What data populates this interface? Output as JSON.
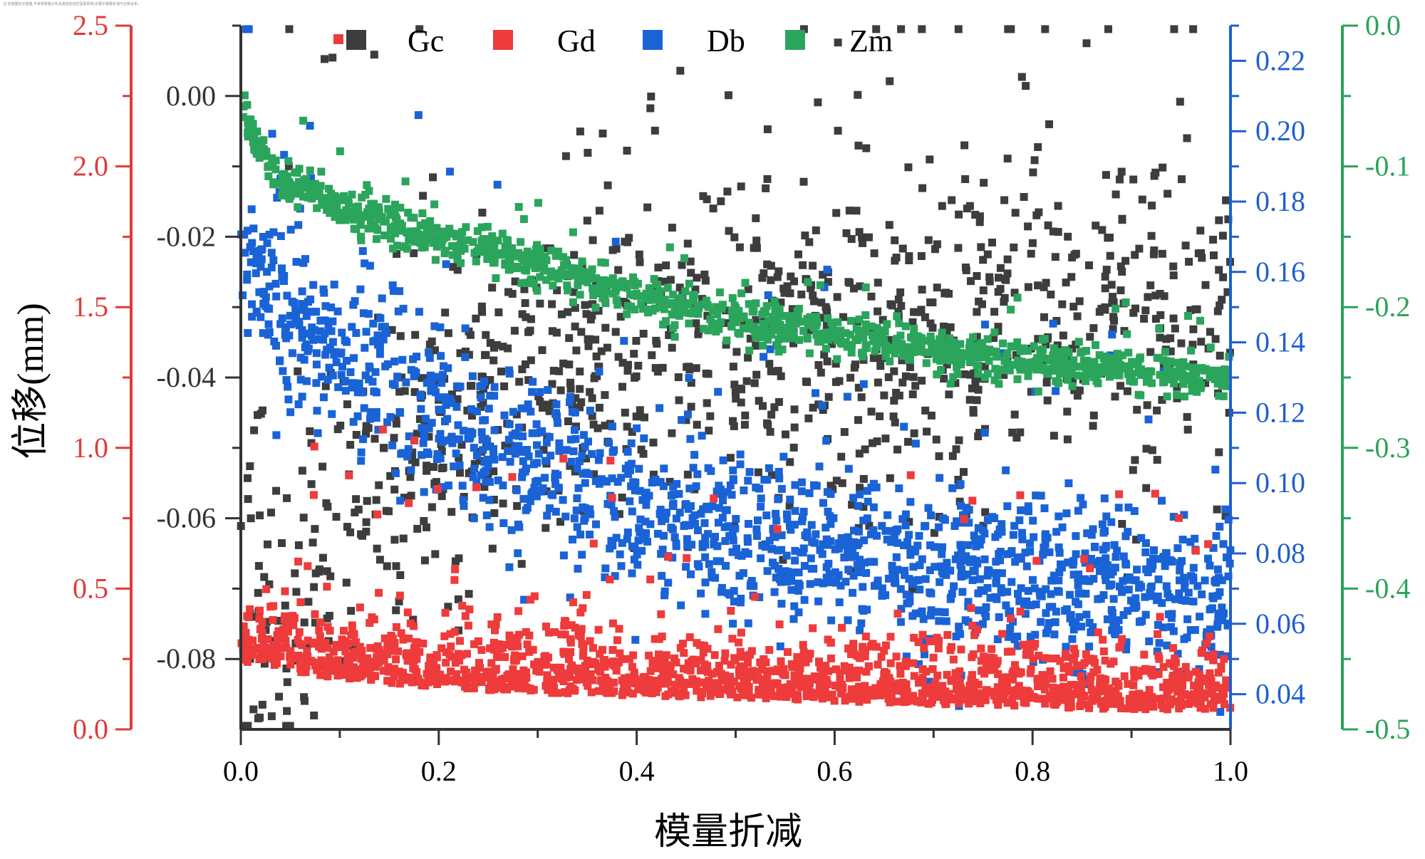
{
  "chart_data": {
    "type": "scatter",
    "title": "",
    "xlabel": "模量折减",
    "ylabel": "位移(mm)",
    "xlim": [
      0,
      1.0
    ],
    "x_ticks": [
      "0.0",
      "0.2",
      "0.4",
      "0.6",
      "0.8",
      "1.0"
    ],
    "axes": {
      "red": {
        "range": [
          0,
          2.5
        ],
        "ticks": [
          "0.0",
          "0.5",
          "1.0",
          "1.5",
          "2.0",
          "2.5"
        ],
        "color": "#e03a3a"
      },
      "black": {
        "range": [
          -0.09,
          0.01
        ],
        "ticks": [
          "0.00",
          "-0.02",
          "-0.04",
          "-0.06",
          "-0.08"
        ],
        "color": "#333333"
      },
      "blue": {
        "range": [
          0.03,
          0.23
        ],
        "ticks": [
          "0.04",
          "0.06",
          "0.08",
          "0.10",
          "0.12",
          "0.14",
          "0.16",
          "0.18",
          "0.20",
          "0.22"
        ],
        "color": "#1f5fd0"
      },
      "green": {
        "range": [
          -0.5,
          0.0
        ],
        "ticks": [
          "0.0",
          "-0.1",
          "-0.2",
          "-0.3",
          "-0.4",
          "-0.5"
        ],
        "color": "#2aa35a"
      }
    },
    "series": [
      {
        "name": "Gc",
        "color": "#3d3d3d",
        "axis": "black",
        "trend_x": [
          0.0,
          0.1,
          0.2,
          0.3,
          0.4,
          0.5,
          0.6,
          0.7,
          0.8,
          0.9,
          1.0
        ],
        "trend_y": [
          -0.078,
          -0.06,
          -0.048,
          -0.04,
          -0.037,
          -0.035,
          -0.036,
          -0.036,
          -0.033,
          -0.031,
          -0.03
        ],
        "spread": 0.012,
        "n_points": 1100
      },
      {
        "name": "Gd",
        "color": "#ee3b3b",
        "axis": "red",
        "trend_x": [
          0.0,
          0.1,
          0.2,
          0.3,
          0.4,
          0.5,
          0.6,
          0.7,
          0.8,
          0.9,
          1.0
        ],
        "trend_y": [
          0.3,
          0.24,
          0.21,
          0.19,
          0.18,
          0.17,
          0.16,
          0.15,
          0.14,
          0.13,
          0.13
        ],
        "spread": 0.12,
        "n_points": 1600
      },
      {
        "name": "Db",
        "color": "#1a63d6",
        "axis": "blue",
        "trend_x": [
          0.0,
          0.05,
          0.1,
          0.2,
          0.3,
          0.4,
          0.5,
          0.6,
          0.7,
          0.8,
          0.9,
          1.0
        ],
        "trend_y": [
          0.165,
          0.145,
          0.135,
          0.12,
          0.103,
          0.093,
          0.085,
          0.08,
          0.076,
          0.073,
          0.071,
          0.069
        ],
        "spread": 0.012,
        "n_points": 1500
      },
      {
        "name": "Zm",
        "color": "#2ba55c",
        "axis": "green",
        "trend_x": [
          0.0,
          0.02,
          0.05,
          0.1,
          0.2,
          0.3,
          0.4,
          0.5,
          0.6,
          0.7,
          0.8,
          0.9,
          1.0
        ],
        "trend_y": [
          -0.06,
          -0.09,
          -0.11,
          -0.13,
          -0.15,
          -0.17,
          -0.19,
          -0.21,
          -0.22,
          -0.23,
          -0.24,
          -0.245,
          -0.25
        ],
        "spread": 0.007,
        "n_points": 1200
      }
    ],
    "legend": [
      "Gc",
      "Gd",
      "Db",
      "Zm"
    ],
    "legend_position": "top",
    "grid": false
  },
  "header_note": "注:仿真图形示意图,不考虑荷载分布及其他非线性因素影响,仅展示模量折减与位移关系。"
}
